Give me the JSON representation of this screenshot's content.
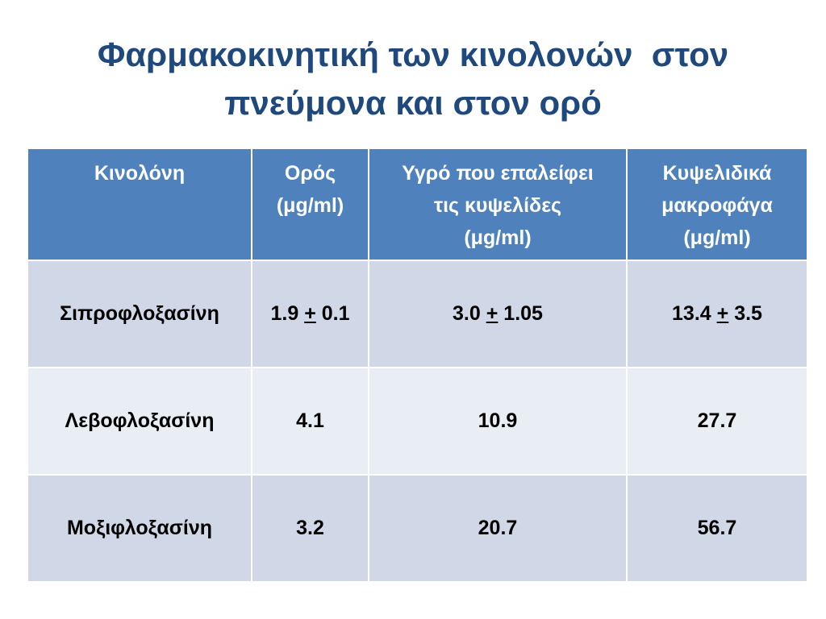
{
  "title_lines": [
    "Φαρμακοκινητική των κινολονών  στον",
    "πνεύμονα και στον ορό"
  ],
  "table": {
    "header": [
      [
        "Κινολόνη"
      ],
      [
        "Ορός",
        "(μg/ml)"
      ],
      [
        "Υγρό που επαλείφει",
        "τις κυψελίδες",
        "(μg/ml)"
      ],
      [
        "Κυψελιδικά",
        "μακροφάγα",
        "(μg/ml)"
      ]
    ],
    "rows": [
      [
        "Σιπροφλοξασίνη",
        {
          "value": "1.9",
          "sign": "+",
          "error": "0.1"
        },
        {
          "value": "3.0",
          "sign": "+",
          "error": "1.05"
        },
        {
          "value": "13.4",
          "sign": "+",
          "error": "3.5"
        }
      ],
      [
        "Λεβοφλοξασίνη",
        "4.1",
        "10.9",
        "27.7"
      ],
      [
        "Μοξιφλοξασίνη",
        "3.2",
        "20.7",
        "56.7"
      ]
    ]
  }
}
